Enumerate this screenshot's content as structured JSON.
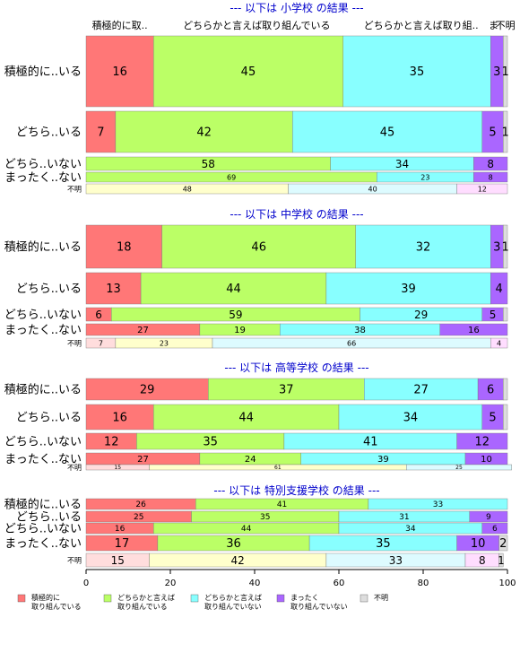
{
  "chart_data": {
    "type": "bar",
    "orientation": "horizontal-stacked-percent",
    "column_headers": [
      "積極的に取..",
      "どちらかと言えば取り組んでいる",
      "どちらかと言えば取り組..",
      "ま",
      "不明"
    ],
    "categories": [
      "積極的に取り組んでいる",
      "どちらかと言えば取り組んでいる",
      "どちらかと言えば取り組んでいない",
      "まったく取り組んでいない",
      "不明"
    ],
    "colors": [
      "#ff7777",
      "#bbff66",
      "#88ffff",
      "#aa66ff",
      "#dddddd"
    ],
    "pale_colors": [
      "#ffdddd",
      "#ffffcc",
      "#ddfbff",
      "#ffddff"
    ],
    "title_color": "#0000cc",
    "xlim": [
      0,
      100
    ],
    "x_ticks": [
      "0",
      "20",
      "40",
      "60",
      "80",
      "100"
    ],
    "legend": {
      "position": "bottom",
      "items": [
        {
          "line1": "積極的に",
          "line2": "取り組んでいる"
        },
        {
          "line1": "どちらかと言えば",
          "line2": "取り組んでいる"
        },
        {
          "line1": "どちらかと言えば",
          "line2": "取り組んでいない"
        },
        {
          "line1": "まったく",
          "line2": "取り組んでいない"
        },
        {
          "line1": "不明",
          "line2": ""
        }
      ]
    },
    "sections": [
      {
        "title": "--- 以下は 小学校 の結果 ---",
        "rows": [
          {
            "label": "積極的に..いる",
            "values": [
              16,
              45,
              35,
              3,
              1
            ],
            "labels": [
              "16",
              "45",
              "35",
              "3",
              "1"
            ]
          },
          {
            "label": "どちら..いる",
            "values": [
              7,
              42,
              45,
              5,
              1
            ],
            "labels": [
              "7",
              "42",
              "45",
              "5",
              "1"
            ]
          },
          {
            "label": "どちら..いない",
            "values": [
              0,
              58,
              34,
              8,
              0
            ],
            "labels": [
              "",
              "58",
              "34",
              "8",
              ""
            ]
          },
          {
            "label": "まったく..ない",
            "values": [
              0,
              69,
              23,
              8,
              0
            ],
            "labels": [
              "",
              "69",
              "23",
              "8",
              ""
            ]
          },
          {
            "label": "不明",
            "pale": true,
            "values": [
              0,
              48,
              40,
              12,
              0
            ],
            "labels": [
              "",
              "48",
              "40",
              "12",
              ""
            ]
          }
        ]
      },
      {
        "title": "--- 以下は 中学校 の結果 ---",
        "rows": [
          {
            "label": "積極的に..いる",
            "values": [
              18,
              46,
              32,
              3,
              1
            ],
            "labels": [
              "18",
              "46",
              "32",
              "3",
              "1"
            ]
          },
          {
            "label": "どちら..いる",
            "values": [
              13,
              44,
              39,
              4,
              0
            ],
            "labels": [
              "13",
              "44",
              "39",
              "4",
              ""
            ]
          },
          {
            "label": "どちら..いない",
            "values": [
              6,
              59,
              29,
              5,
              1
            ],
            "labels": [
              "6",
              "59",
              "29",
              "5",
              ""
            ]
          },
          {
            "label": "まったく..ない",
            "values": [
              27,
              19,
              38,
              16,
              0
            ],
            "labels": [
              "27",
              "19",
              "38",
              "16",
              ""
            ]
          },
          {
            "label": "不明",
            "pale": true,
            "values": [
              7,
              23,
              66,
              4,
              0
            ],
            "labels": [
              "7",
              "23",
              "66",
              "4",
              ""
            ]
          }
        ]
      },
      {
        "title": "--- 以下は 高等学校 の結果 ---",
        "rows": [
          {
            "label": "積極的に..いる",
            "values": [
              29,
              37,
              27,
              6,
              1
            ],
            "labels": [
              "29",
              "37",
              "27",
              "6",
              ""
            ]
          },
          {
            "label": "どちら..いる",
            "values": [
              16,
              44,
              34,
              5,
              1
            ],
            "labels": [
              "16",
              "44",
              "34",
              "5",
              ""
            ]
          },
          {
            "label": "どちら..いない",
            "values": [
              12,
              35,
              41,
              12,
              0
            ],
            "labels": [
              "12",
              "35",
              "41",
              "12",
              ""
            ]
          },
          {
            "label": "まったく..ない",
            "values": [
              27,
              24,
              39,
              10,
              0
            ],
            "labels": [
              "27",
              "24",
              "39",
              "10",
              ""
            ]
          },
          {
            "label": "不明",
            "pale": true,
            "values": [
              15,
              61,
              25,
              0,
              0
            ],
            "labels": [
              "15",
              "61",
              "25",
              "",
              ""
            ]
          }
        ]
      },
      {
        "title": "--- 以下は 特別支援学校 の結果 ---",
        "rows": [
          {
            "label": "積極的に..いる",
            "values": [
              26,
              41,
              33,
              0,
              0
            ],
            "labels": [
              "26",
              "41",
              "33",
              "",
              ""
            ]
          },
          {
            "label": "どちら..いる",
            "values": [
              25,
              35,
              31,
              9,
              0
            ],
            "labels": [
              "25",
              "35",
              "31",
              "9",
              ""
            ]
          },
          {
            "label": "どちら..いない",
            "values": [
              16,
              44,
              34,
              6,
              0
            ],
            "labels": [
              "16",
              "44",
              "34",
              "6",
              ""
            ]
          },
          {
            "label": "まったく..ない",
            "values": [
              17,
              36,
              35,
              10,
              2
            ],
            "labels": [
              "17",
              "36",
              "35",
              "10",
              "2"
            ]
          },
          {
            "label": "不明",
            "pale": true,
            "values": [
              15,
              42,
              33,
              8,
              1
            ],
            "labels": [
              "15",
              "42",
              "33",
              "8",
              "1"
            ]
          }
        ]
      }
    ]
  }
}
